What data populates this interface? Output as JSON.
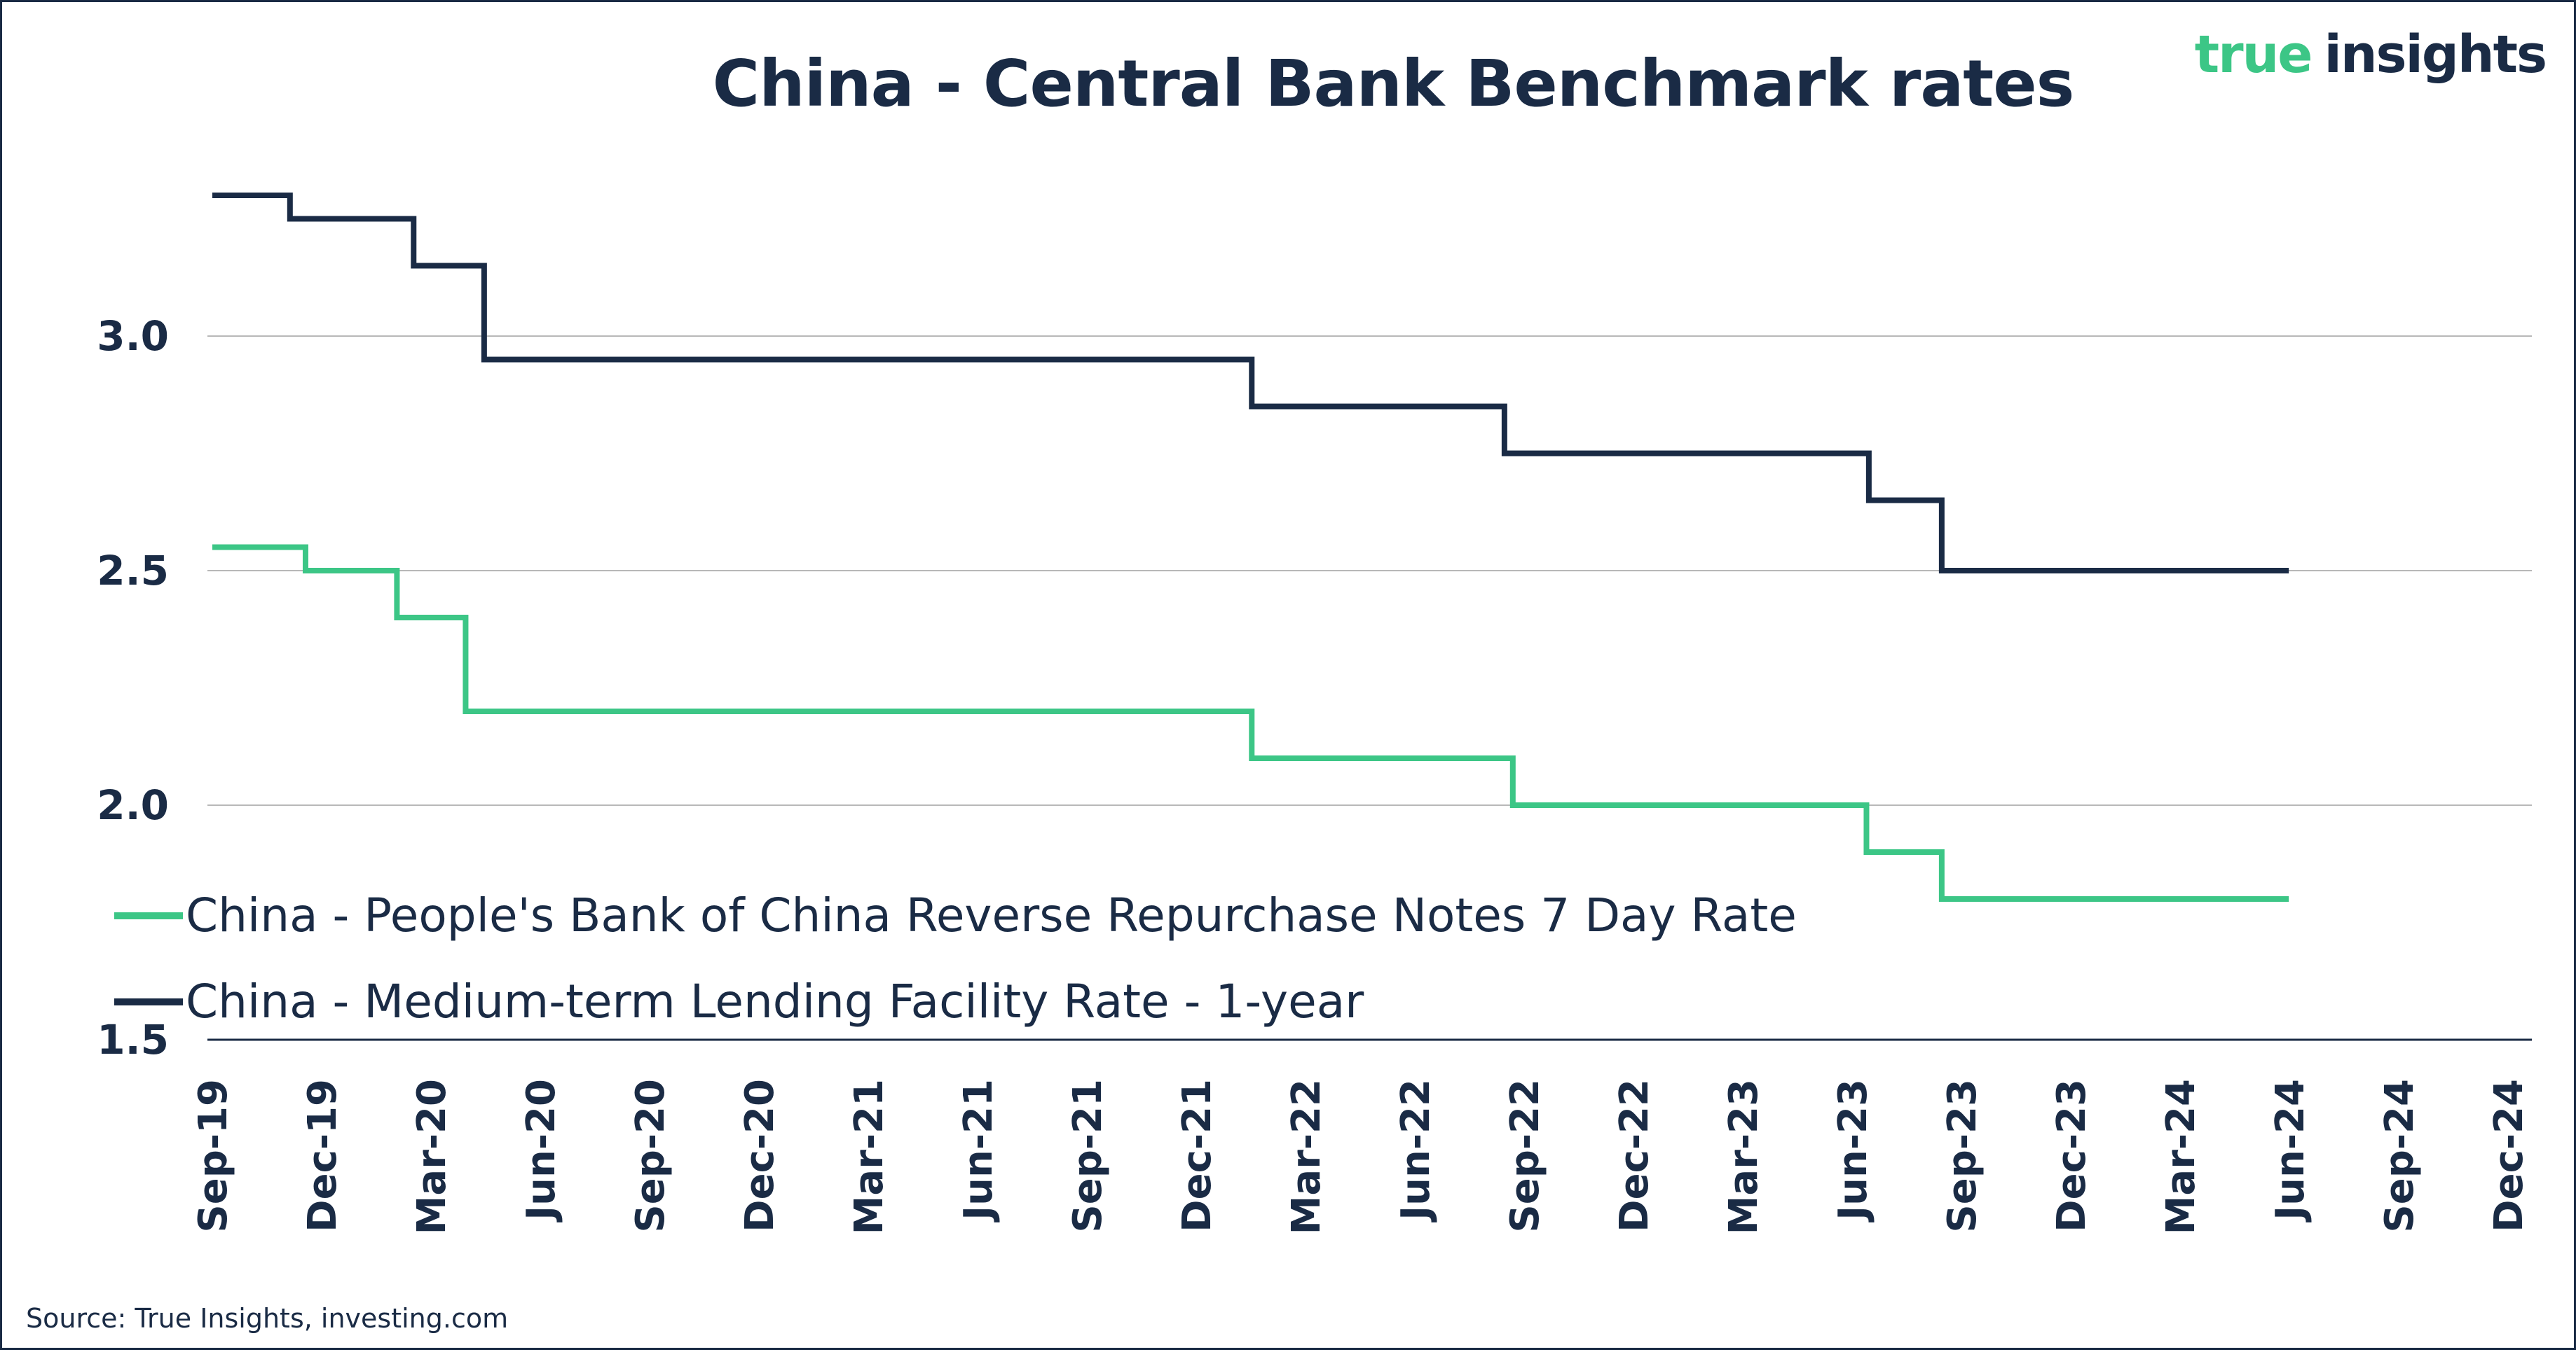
{
  "logo": {
    "part1": "true",
    "part2": "insights"
  },
  "colors": {
    "navy": "#1a2b45",
    "green": "#3cc686",
    "grid": "#b8b8b8"
  },
  "source": "Source: True Insights, investing.com",
  "chart_data": {
    "type": "line",
    "step": true,
    "title": "China - Central Bank Benchmark rates",
    "xlabel": "",
    "ylabel": "",
    "ylim": [
      1.5,
      3.35
    ],
    "yticks": [
      1.5,
      2.0,
      2.5,
      3.0
    ],
    "ytick_labels": [
      "1.5",
      "2.0",
      "2.5",
      "3.0"
    ],
    "x_range": [
      "2019-09",
      "2024-12"
    ],
    "x_tick_labels": [
      "Sep-19",
      "Dec-19",
      "Mar-20",
      "Jun-20",
      "Sep-20",
      "Dec-20",
      "Mar-21",
      "Jun-21",
      "Sep-21",
      "Dec-21",
      "Mar-22",
      "Jun-22",
      "Sep-22",
      "Dec-22",
      "Mar-23",
      "Jun-23",
      "Sep-23",
      "Dec-23",
      "Mar-24",
      "Jun-24",
      "Sep-24",
      "Dec-24"
    ],
    "legend_position": "bottom-left",
    "series": [
      {
        "name": "China - People's Bank of China Reverse Repurchase Notes 7 Day Rate",
        "color": "#3cc686",
        "x": [
          "2019-09-01",
          "2019-11-18",
          "2020-02-03",
          "2020-03-30",
          "2022-01-17",
          "2022-08-22",
          "2023-06-13",
          "2023-08-15",
          "2024-05-31"
        ],
        "values": [
          2.55,
          2.5,
          2.4,
          2.2,
          2.1,
          2.0,
          1.9,
          1.8,
          1.8
        ]
      },
      {
        "name": "China - Medium-term Lending Facility Rate - 1-year",
        "color": "#1a2b45",
        "x": [
          "2019-09-01",
          "2019-11-05",
          "2020-02-17",
          "2020-04-15",
          "2022-01-17",
          "2022-08-15",
          "2023-06-15",
          "2023-08-15",
          "2024-05-31"
        ],
        "values": [
          3.3,
          3.25,
          3.15,
          2.95,
          2.85,
          2.75,
          2.65,
          2.5,
          2.5
        ]
      }
    ]
  }
}
